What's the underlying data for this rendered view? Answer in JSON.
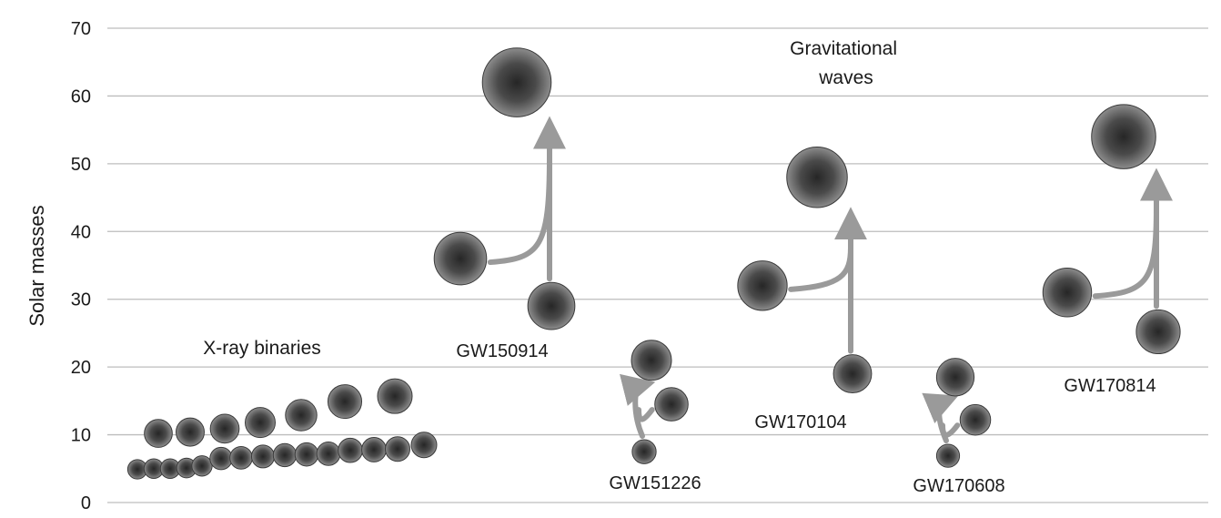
{
  "chart_data": {
    "type": "scatter",
    "title": "",
    "xlabel": "",
    "ylabel": "Solar masses",
    "ylim": [
      0,
      70
    ],
    "yticks": [
      0,
      10,
      20,
      30,
      40,
      50,
      60,
      70
    ],
    "grid": true,
    "colors": {
      "grid": "#bdbdbd",
      "arrow": "#9a9a9a",
      "bubble_dark": "#2a2a2a",
      "bubble_light": "#8a8a8a"
    },
    "annotations": {
      "xray_group": "X-ray binaries",
      "gw_group": [
        "Gravitational",
        "waves"
      ]
    },
    "xray_binaries": {
      "upper_row_masses": [
        10.2,
        10.4,
        10.9,
        11.8,
        12.9,
        14.9,
        15.7
      ],
      "lower_row_masses": [
        4.9,
        5.0,
        5.0,
        5.1,
        5.4,
        6.5,
        6.6,
        6.8,
        7.0,
        7.1,
        7.2,
        7.7,
        7.8,
        7.9,
        8.5
      ]
    },
    "gravitational_wave_events": [
      {
        "name": "GW150914",
        "primary": 36,
        "secondary": 29,
        "final": 62
      },
      {
        "name": "GW151226",
        "primary": 21,
        "secondary": 14.5,
        "final": 7.5
      },
      {
        "name": "GW170104",
        "primary": 32,
        "secondary": 19,
        "final": 48
      },
      {
        "name": "GW170608",
        "primary": 18.5,
        "secondary": 12.2,
        "final": 6.9
      },
      {
        "name": "GW170814",
        "primary": 31,
        "secondary": 25.2,
        "final": 54
      }
    ]
  }
}
